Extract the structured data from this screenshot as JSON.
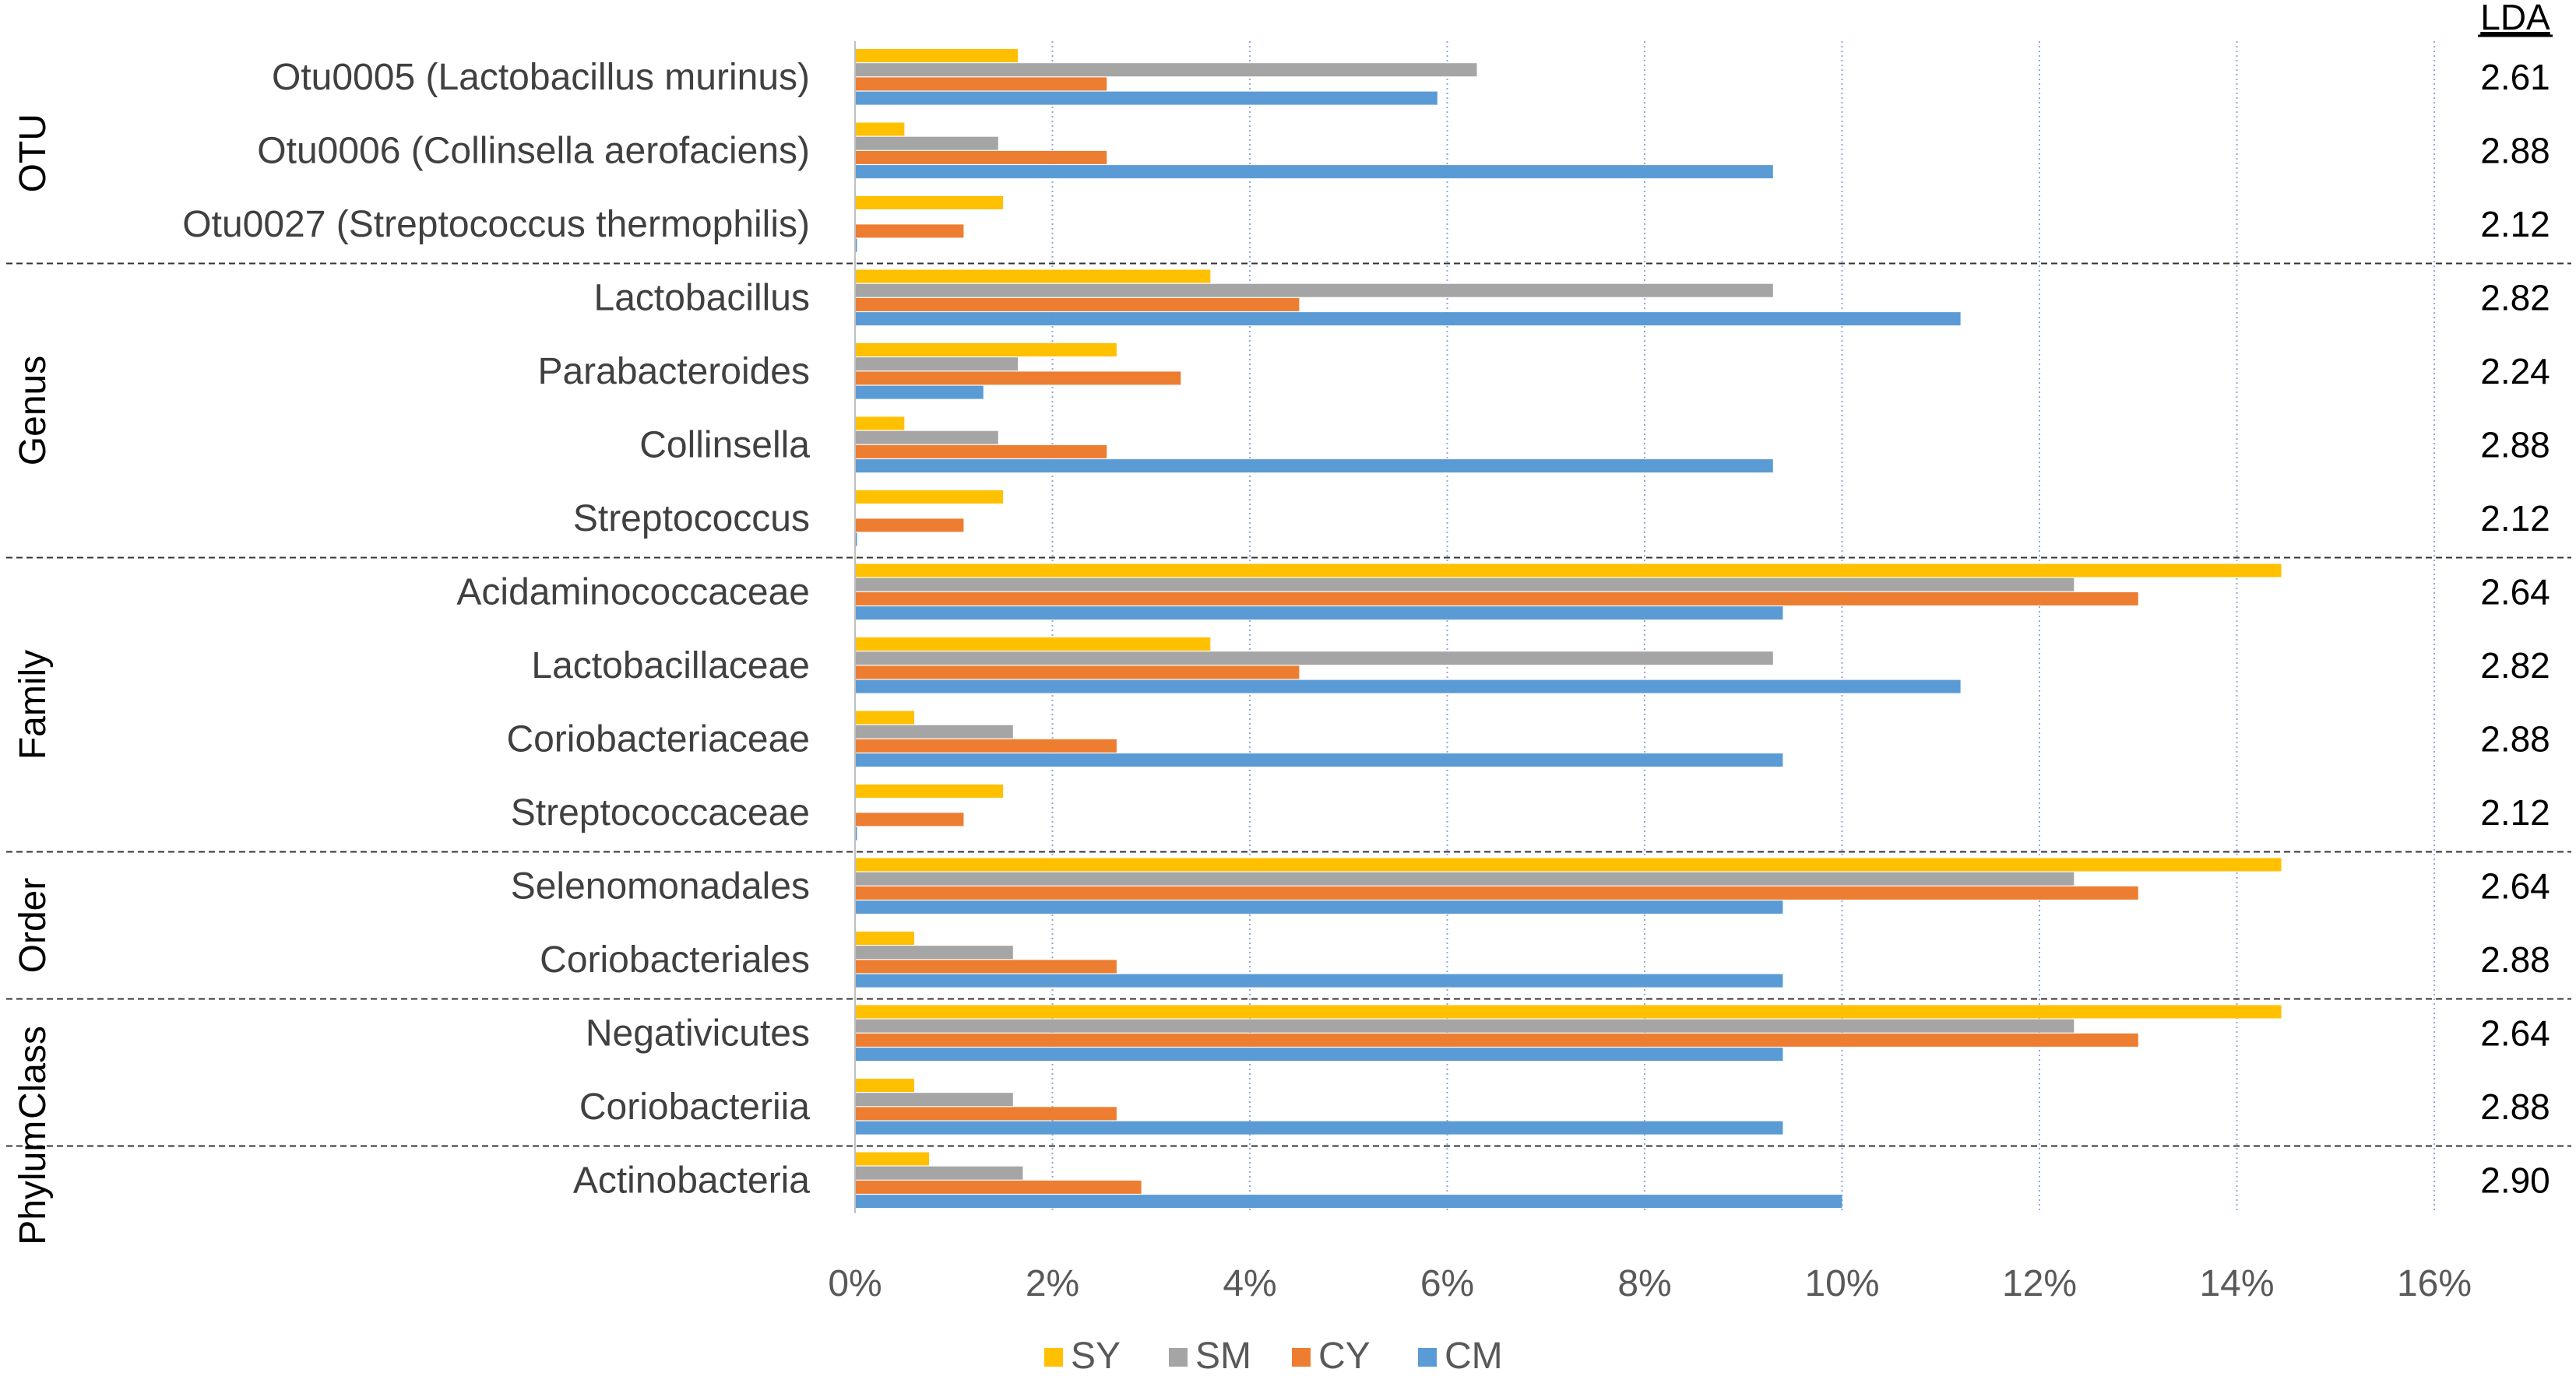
{
  "chart_data": {
    "type": "bar",
    "orientation": "horizontal",
    "title": "",
    "xlabel": "",
    "ylabel": "",
    "xlim": [
      0,
      16
    ],
    "x_ticks": [
      "0%",
      "2%",
      "4%",
      "6%",
      "8%",
      "10%",
      "12%",
      "14%",
      "16%"
    ],
    "x_tick_values": [
      0,
      2,
      4,
      6,
      8,
      10,
      12,
      14,
      16
    ],
    "grid": "vertical dotted",
    "legend_position": "bottom",
    "lda_header": "LDA",
    "colors": {
      "SY": "#FFC000",
      "SM": "#A5A5A5",
      "CY": "#ED7D31",
      "CM": "#5B9BD5"
    },
    "series_names": [
      "SY",
      "SM",
      "CY",
      "CM"
    ],
    "groups": [
      {
        "name": "OTU",
        "rows": [
          {
            "label": "Otu0005 (Lactobacillus murinus)",
            "SY": 1.65,
            "SM": 6.3,
            "CY": 2.55,
            "CM": 5.9,
            "lda": "2.61"
          },
          {
            "label": "Otu0006 (Collinsella aerofaciens)",
            "SY": 0.5,
            "SM": 1.45,
            "CY": 2.55,
            "CM": 9.3,
            "lda": "2.88"
          },
          {
            "label": "Otu0027 (Streptococcus thermophilis)",
            "SY": 1.5,
            "SM": 0.0,
            "CY": 1.1,
            "CM": 0.02,
            "lda": "2.12"
          }
        ]
      },
      {
        "name": "Genus",
        "rows": [
          {
            "label": "Lactobacillus",
            "SY": 3.6,
            "SM": 9.3,
            "CY": 4.5,
            "CM": 11.2,
            "lda": "2.82"
          },
          {
            "label": "Parabacteroides",
            "SY": 2.65,
            "SM": 1.65,
            "CY": 3.3,
            "CM": 1.3,
            "lda": "2.24"
          },
          {
            "label": "Collinsella",
            "SY": 0.5,
            "SM": 1.45,
            "CY": 2.55,
            "CM": 9.3,
            "lda": "2.88"
          },
          {
            "label": "Streptococcus",
            "SY": 1.5,
            "SM": 0.0,
            "CY": 1.1,
            "CM": 0.02,
            "lda": "2.12"
          }
        ]
      },
      {
        "name": "Family",
        "rows": [
          {
            "label": "Acidaminococcaceae",
            "SY": 14.45,
            "SM": 12.35,
            "CY": 13.0,
            "CM": 9.4,
            "lda": "2.64"
          },
          {
            "label": "Lactobacillaceae",
            "SY": 3.6,
            "SM": 9.3,
            "CY": 4.5,
            "CM": 11.2,
            "lda": "2.82"
          },
          {
            "label": "Coriobacteriaceae",
            "SY": 0.6,
            "SM": 1.6,
            "CY": 2.65,
            "CM": 9.4,
            "lda": "2.88"
          },
          {
            "label": "Streptococcaceae",
            "SY": 1.5,
            "SM": 0.0,
            "CY": 1.1,
            "CM": 0.02,
            "lda": "2.12"
          }
        ]
      },
      {
        "name": "Order",
        "rows": [
          {
            "label": "Selenomonadales",
            "SY": 14.45,
            "SM": 12.35,
            "CY": 13.0,
            "CM": 9.4,
            "lda": "2.64"
          },
          {
            "label": "Coriobacteriales",
            "SY": 0.6,
            "SM": 1.6,
            "CY": 2.65,
            "CM": 9.4,
            "lda": "2.88"
          }
        ]
      },
      {
        "name": "Class",
        "rows": [
          {
            "label": "Negativicutes",
            "SY": 14.45,
            "SM": 12.35,
            "CY": 13.0,
            "CM": 9.4,
            "lda": "2.64"
          },
          {
            "label": "Coriobacteriia",
            "SY": 0.6,
            "SM": 1.6,
            "CY": 2.65,
            "CM": 9.4,
            "lda": "2.88"
          }
        ]
      },
      {
        "name": "Phylum",
        "rows": [
          {
            "label": "Actinobacteria",
            "SY": 0.75,
            "SM": 1.7,
            "CY": 2.9,
            "CM": 10.0,
            "lda": "2.90"
          }
        ]
      }
    ]
  }
}
